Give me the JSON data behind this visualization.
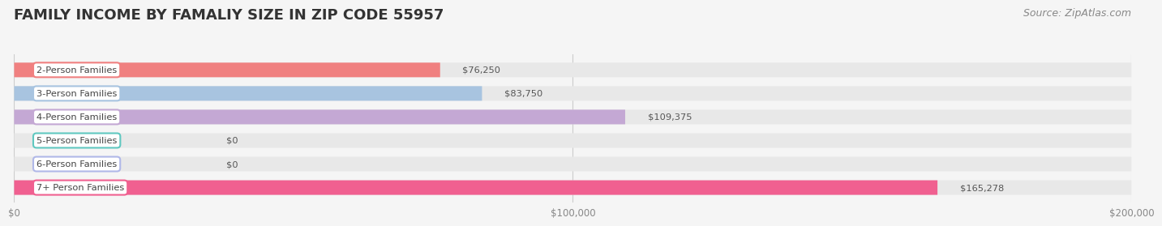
{
  "title": "FAMILY INCOME BY FAMALIY SIZE IN ZIP CODE 55957",
  "source": "Source: ZipAtlas.com",
  "categories": [
    "2-Person Families",
    "3-Person Families",
    "4-Person Families",
    "5-Person Families",
    "6-Person Families",
    "7+ Person Families"
  ],
  "values": [
    76250,
    83750,
    109375,
    0,
    0,
    165278
  ],
  "bar_colors": [
    "#F08080",
    "#A8C4E0",
    "#C4A8D4",
    "#5FC8C0",
    "#B0B8E8",
    "#F06090"
  ],
  "bg_color": "#f5f5f5",
  "bar_bg_color": "#e8e8e8",
  "xlim": [
    0,
    200000
  ],
  "xticks": [
    0,
    100000,
    200000
  ],
  "xticklabels": [
    "$0",
    "$100,000",
    "$200,000"
  ],
  "title_fontsize": 13,
  "source_fontsize": 9,
  "bar_height": 0.62,
  "value_labels": [
    "$76,250",
    "$83,750",
    "$109,375",
    "$0",
    "$0",
    "$165,278"
  ]
}
